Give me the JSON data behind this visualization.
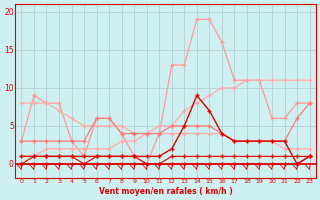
{
  "x": [
    0,
    1,
    2,
    3,
    4,
    5,
    6,
    7,
    8,
    9,
    10,
    11,
    12,
    13,
    14,
    15,
    16,
    17,
    18,
    19,
    20,
    21,
    22,
    23
  ],
  "rafales_high": [
    3,
    9,
    8,
    8,
    3,
    1,
    6,
    6,
    4,
    1,
    0,
    4,
    13,
    13,
    19,
    19,
    16,
    11,
    11,
    11,
    6,
    6,
    8,
    8
  ],
  "trend_up": [
    1,
    1,
    2,
    2,
    2,
    2,
    2,
    2,
    3,
    3,
    4,
    5,
    5,
    7,
    8,
    9,
    10,
    10,
    11,
    11,
    11,
    11,
    11,
    11
  ],
  "trend_down": [
    8,
    8,
    8,
    7,
    6,
    5,
    5,
    5,
    5,
    4,
    4,
    4,
    4,
    4,
    4,
    4,
    4,
    3,
    3,
    3,
    3,
    2,
    2,
    2
  ],
  "mid_pink": [
    3,
    3,
    3,
    3,
    3,
    3,
    6,
    6,
    4,
    4,
    4,
    4,
    5,
    5,
    5,
    5,
    4,
    3,
    3,
    3,
    3,
    3,
    6,
    8
  ],
  "wind_main": [
    1,
    1,
    1,
    1,
    1,
    1,
    1,
    1,
    1,
    1,
    1,
    1,
    2,
    5,
    9,
    7,
    4,
    3,
    3,
    3,
    3,
    3,
    0,
    1
  ],
  "near_zero1": [
    0,
    1,
    1,
    1,
    1,
    0,
    1,
    1,
    1,
    1,
    0,
    0,
    1,
    1,
    1,
    1,
    1,
    1,
    1,
    1,
    1,
    1,
    1,
    1
  ],
  "near_zero2": [
    0,
    0,
    0,
    0,
    0,
    0,
    0,
    0,
    0,
    0,
    0,
    0,
    0,
    0,
    0,
    0,
    0,
    0,
    0,
    0,
    0,
    0,
    0,
    1
  ],
  "xlabel": "Vent moyen/en rafales ( km/h )",
  "ylim_top": 21,
  "yticks": [
    0,
    5,
    10,
    15,
    20
  ],
  "xticks": [
    0,
    1,
    2,
    3,
    4,
    5,
    6,
    7,
    8,
    9,
    10,
    11,
    12,
    13,
    14,
    15,
    16,
    17,
    18,
    19,
    20,
    21,
    22,
    23
  ],
  "bg_color": "#cff0f0",
  "grid_color": "#b0c8c8",
  "color_light_pink": "#ff9999",
  "color_mid_pink": "#ff7777",
  "color_dark_red": "#dd0000",
  "color_pale_pink": "#ffaaaa"
}
